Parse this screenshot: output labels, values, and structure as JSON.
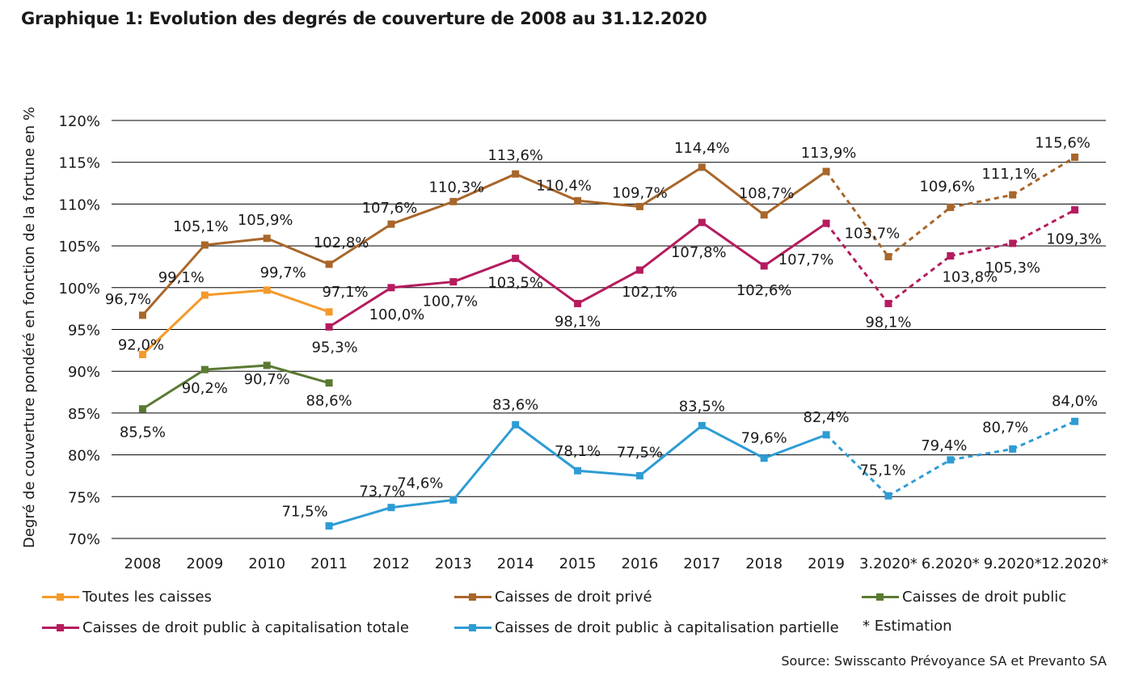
{
  "title": "Graphique 1: Evolution des degrés de couverture de 2008 au 31.12.2020",
  "source": "Source: Swisscanto Prévoyance SA et Prevanto SA",
  "note": "* Estimation",
  "chart_data": {
    "type": "line",
    "title": "Graphique 1: Evolution des degrés de couverture de 2008 au 31.12.2020",
    "ylabel": "Degré de couverture pondéré en fonction de la fortune en %",
    "xlabel": "",
    "ylim": [
      70,
      120
    ],
    "yticks": [
      "70%",
      "75%",
      "80%",
      "85%",
      "90%",
      "95%",
      "100%",
      "105%",
      "110%",
      "115%",
      "120%"
    ],
    "categories": [
      "2008",
      "2009",
      "2010",
      "2011",
      "2012",
      "2013",
      "2014",
      "2015",
      "2016",
      "2017",
      "2018",
      "2019",
      "3.2020*",
      "6.2020*",
      "9.2020*",
      "12.2020*"
    ],
    "estimated_from_index": 11,
    "grid": true,
    "legend_position": "bottom",
    "series": [
      {
        "name": "Toutes les caisses",
        "color": "#f39a2a",
        "values": [
          92.0,
          99.1,
          99.7,
          97.1,
          null,
          null,
          null,
          null,
          null,
          null,
          null,
          null,
          null,
          null,
          null,
          null
        ],
        "labels": [
          "92,0%",
          "99,1%",
          "99,7%",
          "97,1%",
          null,
          null,
          null,
          null,
          null,
          null,
          null,
          null,
          null,
          null,
          null,
          null
        ]
      },
      {
        "name": "Caisses de droit privé",
        "color": "#a8662a",
        "values": [
          96.7,
          105.1,
          105.9,
          102.8,
          107.6,
          110.3,
          113.6,
          110.4,
          109.7,
          114.4,
          108.7,
          113.9,
          103.7,
          109.6,
          111.1,
          115.6
        ],
        "labels": [
          "96,7%",
          "105,1%",
          "105,9%",
          "102,8%",
          "107,6%",
          "110,3%",
          "113,6%",
          "110,4%",
          "109,7%",
          "114,4%",
          "108,7%",
          "113,9%",
          "103,7%",
          "109,6%",
          "111,1%",
          "115,6%"
        ]
      },
      {
        "name": "Caisses de droit public",
        "color": "#5a7a32",
        "values": [
          85.5,
          90.2,
          90.7,
          88.6,
          null,
          null,
          null,
          null,
          null,
          null,
          null,
          null,
          null,
          null,
          null,
          null
        ],
        "labels": [
          "85,5%",
          "90,2%",
          "90,7%",
          "88,6%",
          null,
          null,
          null,
          null,
          null,
          null,
          null,
          null,
          null,
          null,
          null,
          null
        ]
      },
      {
        "name": "Caisses de droit public à capitalisation totale",
        "color": "#b51c5e",
        "values": [
          null,
          null,
          null,
          95.3,
          100.0,
          100.7,
          103.5,
          98.1,
          102.1,
          107.8,
          102.6,
          107.7,
          98.1,
          103.8,
          105.3,
          109.3
        ],
        "labels": [
          null,
          null,
          null,
          "95,3%",
          "100,0%",
          "100,7%",
          "103,5%",
          "98,1%",
          "102,1%",
          "107,8%",
          "102,6%",
          "107,7%",
          "98,1%",
          "103,8%",
          "105,3%",
          "109,3%"
        ]
      },
      {
        "name": "Caisses de droit public à capitalisation partielle",
        "color": "#2e9cd4",
        "values": [
          null,
          null,
          null,
          71.5,
          73.7,
          74.6,
          83.6,
          78.1,
          77.5,
          83.5,
          79.6,
          82.4,
          75.1,
          79.4,
          80.7,
          84.0
        ],
        "labels": [
          null,
          null,
          null,
          "71,5%",
          "73,7%",
          "74,6%",
          "83,6%",
          "78,1%",
          "77,5%",
          "83,5%",
          "79,6%",
          "82,4%",
          "75,1%",
          "79,4%",
          "80,7%",
          "84,0%"
        ]
      }
    ]
  }
}
